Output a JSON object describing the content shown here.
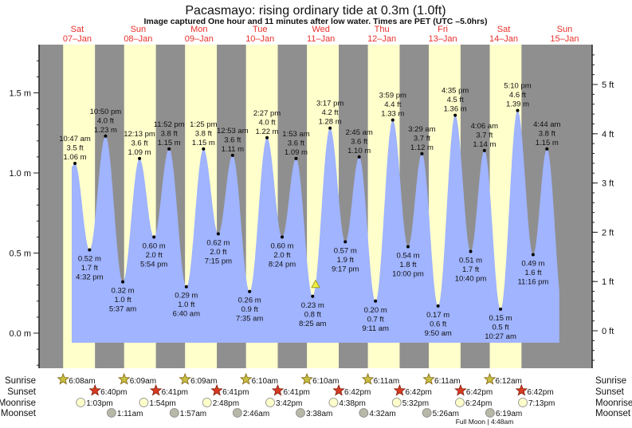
{
  "chart_data": {
    "type": "area",
    "title": "Pacasmayo: rising  ordinary tide at 0.3m (1.0ft)",
    "subtitle": "Image captured One hour and 11 minutes after low water. Times are PET (UTC –5.0hrs)",
    "days": [
      {
        "dow": "Sat",
        "date": "07–Jan"
      },
      {
        "dow": "Sun",
        "date": "08–Jan"
      },
      {
        "dow": "Mon",
        "date": "09–Jan"
      },
      {
        "dow": "Tue",
        "date": "10–Jan"
      },
      {
        "dow": "Wed",
        "date": "11–Jan"
      },
      {
        "dow": "Thu",
        "date": "12–Jan"
      },
      {
        "dow": "Fri",
        "date": "13–Jan"
      },
      {
        "dow": "Sat",
        "date": "14–Jan"
      },
      {
        "dow": "Sun",
        "date": "15–Jan"
      }
    ],
    "y_left": {
      "unit": "m",
      "ticks": [
        "0.0 m",
        "0.5 m",
        "1.0 m",
        "1.5 m"
      ],
      "tick_values": [
        0,
        0.5,
        1.0,
        1.5
      ],
      "range": [
        -0.3,
        1.8
      ]
    },
    "y_right": {
      "unit": "ft",
      "ticks": [
        "0 ft",
        "1 ft",
        "2 ft",
        "3 ft",
        "4 ft",
        "5 ft"
      ],
      "tick_values": [
        0,
        1,
        2,
        3,
        4,
        5
      ]
    },
    "current": {
      "time": "2023-01-11 09:36",
      "height_m": 0.3
    },
    "tides": [
      {
        "day": 0,
        "time": "10:47 am",
        "h": 10.78,
        "m": "1.06 m",
        "ft": "3.5 ft",
        "value": 1.06,
        "kind": "high"
      },
      {
        "day": 0,
        "time": "4:32 pm",
        "h": 16.53,
        "m": "0.52 m",
        "ft": "1.7 ft",
        "value": 0.52,
        "kind": "low"
      },
      {
        "day": 0,
        "time": "10:50 pm",
        "h": 22.83,
        "m": "1.23 m",
        "ft": "4.0 ft",
        "value": 1.23,
        "kind": "high"
      },
      {
        "day": 1,
        "time": "5:37 am",
        "h": 5.62,
        "m": "0.32 m",
        "ft": "1.0 ft",
        "value": 0.32,
        "kind": "low"
      },
      {
        "day": 1,
        "time": "12:13 pm",
        "h": 12.22,
        "m": "1.09 m",
        "ft": "3.6 ft",
        "value": 1.09,
        "kind": "high"
      },
      {
        "day": 1,
        "time": "5:54 pm",
        "h": 17.9,
        "m": "0.60 m",
        "ft": "2.0 ft",
        "value": 0.6,
        "kind": "low"
      },
      {
        "day": 1,
        "time": "11:52 pm",
        "h": 23.87,
        "m": "1.15 m",
        "ft": "3.8 ft",
        "value": 1.15,
        "kind": "high"
      },
      {
        "day": 2,
        "time": "6:40 am",
        "h": 6.67,
        "m": "0.29 m",
        "ft": "1.0 ft",
        "value": 0.29,
        "kind": "low"
      },
      {
        "day": 2,
        "time": "1:25 pm",
        "h": 13.42,
        "m": "1.15 m",
        "ft": "3.8 ft",
        "value": 1.15,
        "kind": "high"
      },
      {
        "day": 2,
        "time": "7:15 pm",
        "h": 19.25,
        "m": "0.62 m",
        "ft": "2.0 ft",
        "value": 0.62,
        "kind": "low"
      },
      {
        "day": 3,
        "time": "12:53 am",
        "h": 0.88,
        "m": "1.11 m",
        "ft": "3.6 ft",
        "value": 1.11,
        "kind": "high"
      },
      {
        "day": 3,
        "time": "7:35 am",
        "h": 7.58,
        "m": "0.26 m",
        "ft": "0.9 ft",
        "value": 0.26,
        "kind": "low"
      },
      {
        "day": 3,
        "time": "2:27 pm",
        "h": 14.45,
        "m": "1.22 m",
        "ft": "4.0 ft",
        "value": 1.22,
        "kind": "high"
      },
      {
        "day": 3,
        "time": "8:24 pm",
        "h": 20.4,
        "m": "0.60 m",
        "ft": "2.0 ft",
        "value": 0.6,
        "kind": "low"
      },
      {
        "day": 4,
        "time": "1:53 am",
        "h": 1.88,
        "m": "1.09 m",
        "ft": "3.6 ft",
        "value": 1.09,
        "kind": "high"
      },
      {
        "day": 4,
        "time": "8:25 am",
        "h": 8.42,
        "m": "0.23 m",
        "ft": "0.8 ft",
        "value": 0.23,
        "kind": "low"
      },
      {
        "day": 4,
        "time": "3:17 pm",
        "h": 15.28,
        "m": "1.28 m",
        "ft": "4.2 ft",
        "value": 1.28,
        "kind": "high"
      },
      {
        "day": 4,
        "time": "9:17 pm",
        "h": 21.28,
        "m": "0.57 m",
        "ft": "1.9 ft",
        "value": 0.57,
        "kind": "low"
      },
      {
        "day": 5,
        "time": "2:45 am",
        "h": 2.75,
        "m": "1.10 m",
        "ft": "3.6 ft",
        "value": 1.1,
        "kind": "high"
      },
      {
        "day": 5,
        "time": "9:11 am",
        "h": 9.18,
        "m": "0.20 m",
        "ft": "0.7 ft",
        "value": 0.2,
        "kind": "low"
      },
      {
        "day": 5,
        "time": "3:59 pm",
        "h": 15.98,
        "m": "1.33 m",
        "ft": "4.4 ft",
        "value": 1.33,
        "kind": "high"
      },
      {
        "day": 5,
        "time": "10:00 pm",
        "h": 22.0,
        "m": "0.54 m",
        "ft": "1.8 ft",
        "value": 0.54,
        "kind": "low"
      },
      {
        "day": 6,
        "time": "3:29 am",
        "h": 3.48,
        "m": "1.12 m",
        "ft": "3.7 ft",
        "value": 1.12,
        "kind": "high"
      },
      {
        "day": 6,
        "time": "9:50 am",
        "h": 9.83,
        "m": "0.17 m",
        "ft": "0.6 ft",
        "value": 0.17,
        "kind": "low"
      },
      {
        "day": 6,
        "time": "4:35 pm",
        "h": 16.58,
        "m": "1.36 m",
        "ft": "4.5 ft",
        "value": 1.36,
        "kind": "high"
      },
      {
        "day": 6,
        "time": "10:40 pm",
        "h": 22.67,
        "m": "0.51 m",
        "ft": "1.7 ft",
        "value": 0.51,
        "kind": "low"
      },
      {
        "day": 7,
        "time": "4:06 am",
        "h": 4.1,
        "m": "1.14 m",
        "ft": "3.7 ft",
        "value": 1.14,
        "kind": "high"
      },
      {
        "day": 7,
        "time": "10:27 am",
        "h": 10.45,
        "m": "0.15 m",
        "ft": "0.5 ft",
        "value": 0.15,
        "kind": "low"
      },
      {
        "day": 7,
        "time": "5:10 pm",
        "h": 17.17,
        "m": "1.39 m",
        "ft": "4.6 ft",
        "value": 1.39,
        "kind": "high"
      },
      {
        "day": 7,
        "time": "11:16 pm",
        "h": 23.27,
        "m": "0.49 m",
        "ft": "1.6 ft",
        "value": 0.49,
        "kind": "low"
      },
      {
        "day": 8,
        "time": "4:44 am",
        "h": 4.73,
        "m": "1.15 m",
        "ft": "3.8 ft",
        "value": 1.15,
        "kind": "high"
      }
    ],
    "sunrise": [
      {
        "day": 0,
        "label": "6:08am",
        "h": 6.13
      },
      {
        "day": 1,
        "label": "6:09am",
        "h": 6.15
      },
      {
        "day": 2,
        "label": "6:09am",
        "h": 6.15
      },
      {
        "day": 3,
        "label": "6:10am",
        "h": 6.17
      },
      {
        "day": 4,
        "label": "6:10am",
        "h": 6.17
      },
      {
        "day": 5,
        "label": "6:11am",
        "h": 6.18
      },
      {
        "day": 6,
        "label": "6:11am",
        "h": 6.18
      },
      {
        "day": 7,
        "label": "6:12am",
        "h": 6.2
      }
    ],
    "sunset": [
      {
        "day": 0,
        "label": "6:40pm",
        "h": 18.67
      },
      {
        "day": 1,
        "label": "6:41pm",
        "h": 18.68
      },
      {
        "day": 2,
        "label": "6:41pm",
        "h": 18.68
      },
      {
        "day": 3,
        "label": "6:41pm",
        "h": 18.68
      },
      {
        "day": 4,
        "label": "6:42pm",
        "h": 18.7
      },
      {
        "day": 5,
        "label": "6:42pm",
        "h": 18.7
      },
      {
        "day": 6,
        "label": "6:42pm",
        "h": 18.7
      },
      {
        "day": 7,
        "label": "6:42pm",
        "h": 18.7
      }
    ],
    "moonrise": [
      {
        "day": 0,
        "label": "1:03pm",
        "h": 13.05
      },
      {
        "day": 1,
        "label": "1:54pm",
        "h": 13.9
      },
      {
        "day": 2,
        "label": "2:48pm",
        "h": 14.8
      },
      {
        "day": 3,
        "label": "3:42pm",
        "h": 15.7
      },
      {
        "day": 4,
        "label": "4:38pm",
        "h": 16.63
      },
      {
        "day": 5,
        "label": "5:32pm",
        "h": 17.53
      },
      {
        "day": 6,
        "label": "6:24pm",
        "h": 18.4
      },
      {
        "day": 7,
        "label": "7:13pm",
        "h": 19.22
      }
    ],
    "moonset": [
      {
        "day": 1,
        "label": "1:11am",
        "h": 1.18
      },
      {
        "day": 2,
        "label": "1:57am",
        "h": 1.95
      },
      {
        "day": 3,
        "label": "2:46am",
        "h": 2.77
      },
      {
        "day": 4,
        "label": "3:38am",
        "h": 3.63
      },
      {
        "day": 5,
        "label": "4:32am",
        "h": 4.53
      },
      {
        "day": 6,
        "label": "5:26am",
        "h": 5.43
      },
      {
        "day": 7,
        "label": "6:19am",
        "h": 6.32
      }
    ],
    "row_labels": {
      "sunrise": "Sunrise",
      "sunset": "Sunset",
      "moonrise": "Moonrise",
      "moonset": "Moonset"
    },
    "moon_phase": "Full Moon | 4:48am",
    "colors": {
      "night": "#8f8f8f",
      "day": "#ffffcc",
      "water": "#a0b4ff",
      "date_label": "#e8302c",
      "sun_rise": "#c8c040",
      "sun_set": "#d83a20",
      "moon_rise": "#ffffcc",
      "moon_set": "#b8b8a8"
    }
  }
}
